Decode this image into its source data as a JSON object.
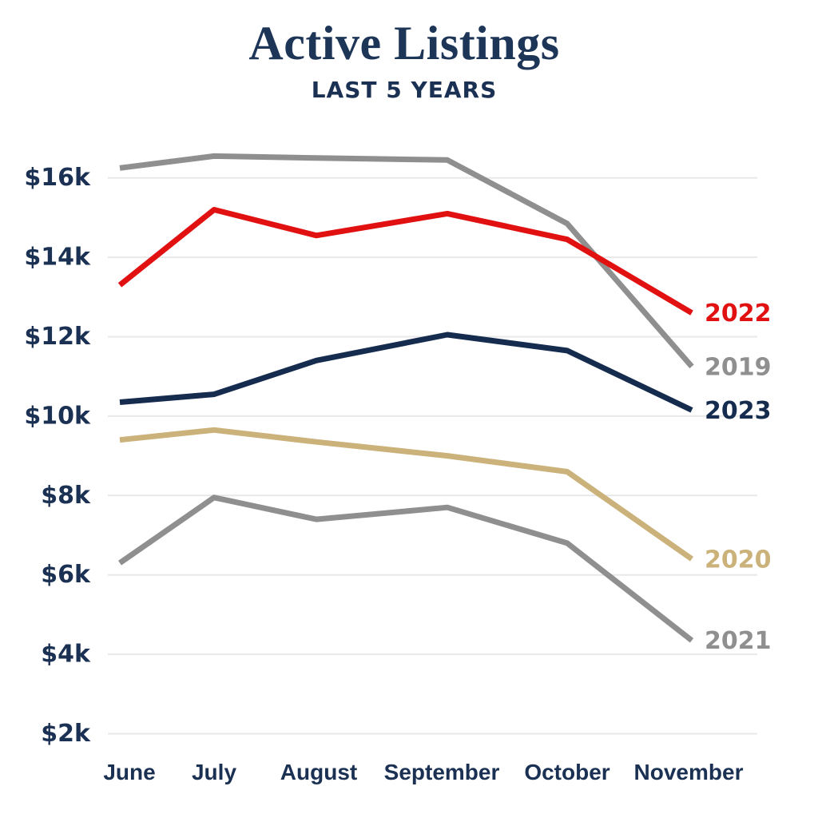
{
  "header": {
    "title": "Active Listings",
    "subtitle": "LAST 5 YEARS"
  },
  "colors": {
    "navy_text": "#1b3153",
    "gridline": "#e8e8e8",
    "background": "#ffffff"
  },
  "chart_data": {
    "type": "line",
    "title": "Active Listings",
    "subtitle": "LAST 5 YEARS",
    "categories": [
      "June",
      "July",
      "August",
      "September",
      "October",
      "November"
    ],
    "ytick_labels": [
      "$16k",
      "$14k",
      "$12k",
      "$10k",
      "$8k",
      "$6k",
      "$4k",
      "$2k"
    ],
    "ylim": [
      2000,
      17000
    ],
    "grid": "horizontal-only",
    "legend_position": "labels-at-line-ends-right",
    "series": [
      {
        "name": "2019",
        "color": "#8f8f8f",
        "values": [
          16250,
          16550,
          16500,
          16450,
          14850,
          11250
        ]
      },
      {
        "name": "2022",
        "color": "#e21111",
        "values": [
          13300,
          15200,
          14550,
          15100,
          14450,
          12600
        ]
      },
      {
        "name": "2023",
        "color": "#152c4e",
        "values": [
          10350,
          10550,
          11400,
          12050,
          11650,
          10150
        ]
      },
      {
        "name": "2020",
        "color": "#cbb27a",
        "values": [
          9400,
          9650,
          9350,
          9000,
          8600,
          6400
        ]
      },
      {
        "name": "2021",
        "color": "#8f8f8f",
        "values": [
          6300,
          7950,
          7400,
          7700,
          6800,
          4350
        ]
      }
    ]
  }
}
